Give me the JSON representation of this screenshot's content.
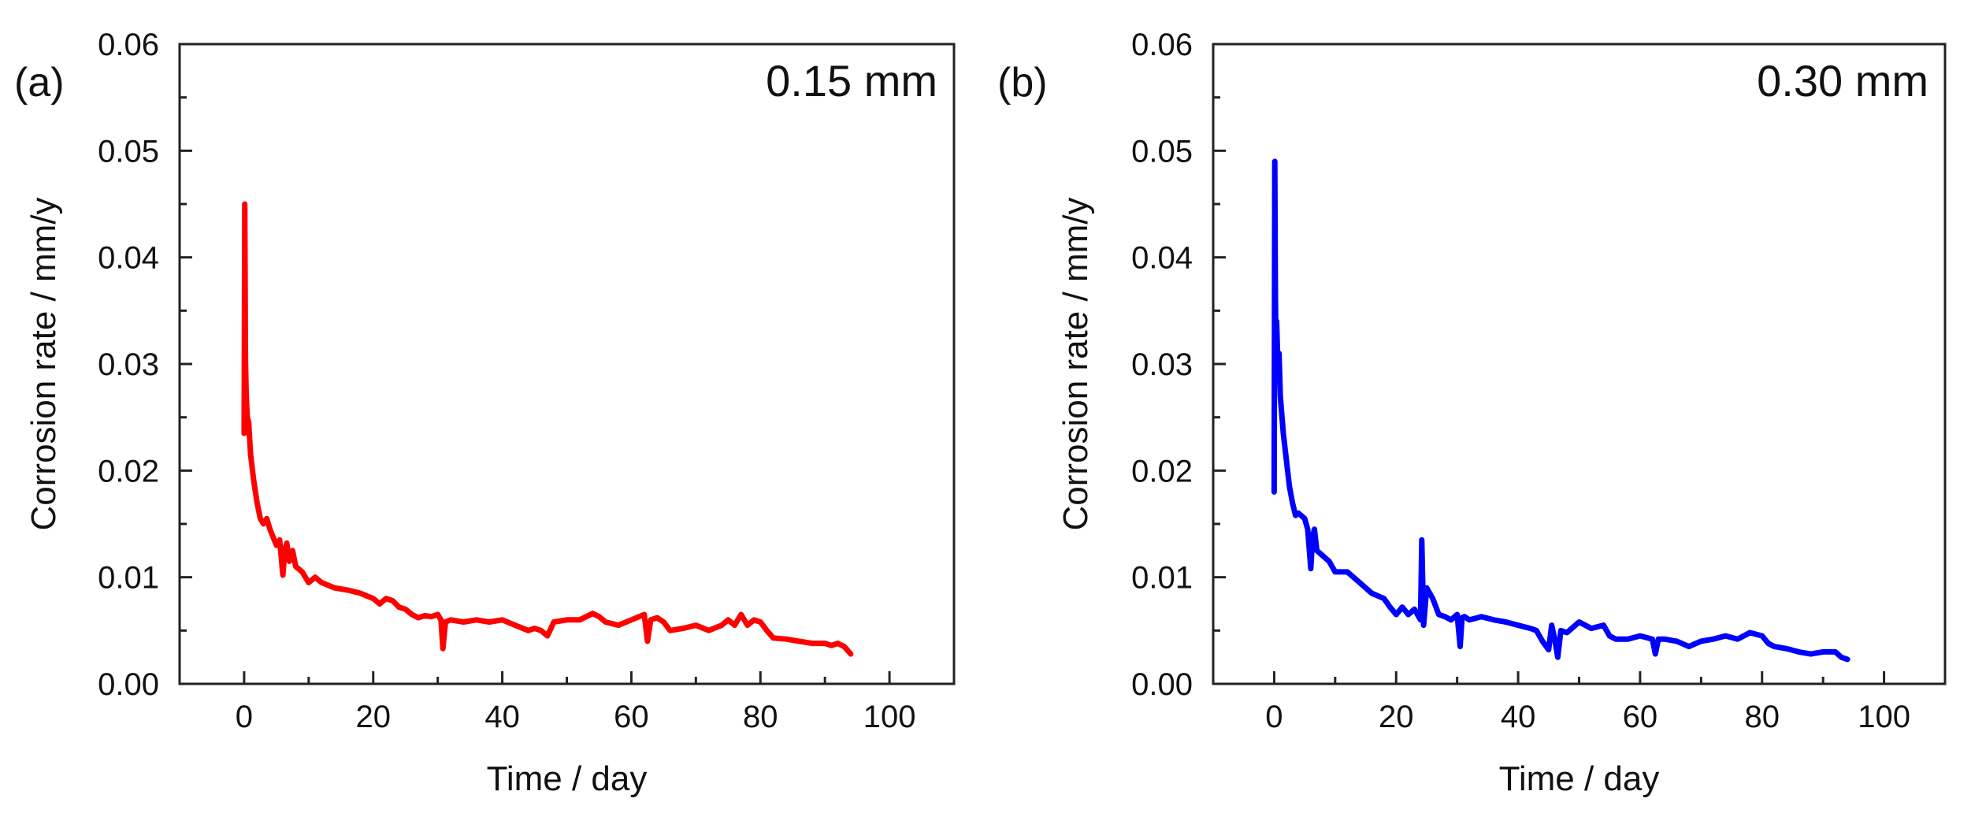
{
  "figure": {
    "panels": [
      {
        "panel_label": "(a)",
        "annotation": "0.15 mm",
        "color": "#ff0000"
      },
      {
        "panel_label": "(b)",
        "annotation": "0.30 mm",
        "color": "#0000ff"
      }
    ]
  },
  "chart_data": [
    {
      "type": "line",
      "panel_label": "(a)",
      "annotation": "0.15 mm",
      "title": "",
      "xlabel": "Time / day",
      "ylabel": "Corrosion rate / mm/y",
      "xlim": [
        -10,
        110
      ],
      "ylim": [
        0.0,
        0.06
      ],
      "xticks": [
        0,
        20,
        40,
        60,
        80,
        100
      ],
      "xtick_labels": [
        "0",
        "20",
        "40",
        "60",
        "80",
        "100"
      ],
      "yticks": [
        0.0,
        0.01,
        0.02,
        0.03,
        0.04,
        0.05,
        0.06
      ],
      "ytick_labels": [
        "0.00",
        "0.01",
        "0.02",
        "0.03",
        "0.04",
        "0.05",
        "0.06"
      ],
      "grid": false,
      "legend": "none",
      "series": [
        {
          "name": "0.15 mm",
          "color": "#ff0000",
          "x": [
            0,
            0.1,
            0.2,
            0.3,
            0.4,
            0.5,
            0.7,
            1.0,
            1.5,
            2.0,
            2.5,
            3.0,
            3.5,
            4.0,
            5.0,
            5.5,
            6.0,
            6.3,
            6.6,
            7.0,
            7.5,
            8.0,
            9.0,
            10.0,
            11.0,
            12.0,
            14.0,
            16.0,
            18.0,
            20.0,
            21.0,
            22.0,
            23.0,
            24.0,
            25.0,
            26.0,
            27.0,
            28.0,
            29.0,
            30.0,
            30.5,
            30.8,
            31.2,
            32.0,
            34.0,
            36.0,
            38.0,
            40.0,
            42.0,
            44.0,
            45.0,
            46.0,
            47.0,
            48.0,
            50.0,
            52.0,
            54.0,
            55.0,
            56.0,
            58.0,
            60.0,
            62.0,
            62.5,
            63.0,
            64.0,
            65.0,
            66.0,
            68.0,
            70.0,
            72.0,
            74.0,
            75.0,
            76.0,
            77.0,
            78.0,
            79.0,
            80.0,
            81.0,
            82.0,
            84.0,
            86.0,
            88.0,
            90.0,
            91.0,
            92.0,
            93.0,
            94.0
          ],
          "y": [
            0.0235,
            0.045,
            0.0305,
            0.0275,
            0.026,
            0.025,
            0.0245,
            0.0215,
            0.019,
            0.017,
            0.0155,
            0.015,
            0.0155,
            0.0145,
            0.013,
            0.0135,
            0.0102,
            0.0125,
            0.0132,
            0.0115,
            0.0125,
            0.011,
            0.0105,
            0.0095,
            0.01,
            0.0095,
            0.009,
            0.0088,
            0.0085,
            0.008,
            0.0075,
            0.008,
            0.0078,
            0.0072,
            0.007,
            0.0065,
            0.0062,
            0.0064,
            0.0063,
            0.0065,
            0.006,
            0.0033,
            0.0058,
            0.006,
            0.0058,
            0.006,
            0.0058,
            0.006,
            0.0055,
            0.005,
            0.0052,
            0.005,
            0.0045,
            0.0058,
            0.006,
            0.006,
            0.0066,
            0.0063,
            0.0058,
            0.0055,
            0.006,
            0.0065,
            0.004,
            0.006,
            0.0062,
            0.0058,
            0.005,
            0.0052,
            0.0055,
            0.005,
            0.0055,
            0.006,
            0.0055,
            0.0065,
            0.0055,
            0.006,
            0.0058,
            0.005,
            0.0043,
            0.0042,
            0.004,
            0.0038,
            0.0038,
            0.0036,
            0.0038,
            0.0035,
            0.0028
          ]
        }
      ]
    },
    {
      "type": "line",
      "panel_label": "(b)",
      "annotation": "0.30 mm",
      "title": "",
      "xlabel": "Time / day",
      "ylabel": "Corrosion rate / mm/y",
      "xlim": [
        -10,
        110
      ],
      "ylim": [
        0.0,
        0.06
      ],
      "xticks": [
        0,
        20,
        40,
        60,
        80,
        100
      ],
      "xtick_labels": [
        "0",
        "20",
        "40",
        "60",
        "80",
        "100"
      ],
      "yticks": [
        0.0,
        0.01,
        0.02,
        0.03,
        0.04,
        0.05,
        0.06
      ],
      "ytick_labels": [
        "0.00",
        "0.01",
        "0.02",
        "0.03",
        "0.04",
        "0.05",
        "0.06"
      ],
      "grid": false,
      "legend": "none",
      "series": [
        {
          "name": "0.30 mm",
          "color": "#0000ff",
          "x": [
            0,
            0.1,
            0.2,
            0.3,
            0.4,
            0.6,
            0.8,
            1.0,
            1.5,
            2.0,
            2.5,
            3.0,
            3.5,
            4.0,
            5.0,
            5.5,
            6.0,
            6.3,
            6.6,
            7.0,
            8.0,
            9.0,
            10.0,
            12.0,
            14.0,
            16.0,
            18.0,
            19.0,
            20.0,
            21.0,
            22.0,
            23.0,
            24.0,
            24.2,
            24.5,
            25.0,
            26.0,
            27.0,
            28.0,
            29.0,
            30.0,
            30.5,
            30.8,
            31.2,
            32.0,
            34.0,
            36.0,
            38.0,
            40.0,
            42.0,
            43.0,
            44.0,
            45.0,
            45.5,
            46.0,
            46.5,
            47.0,
            48.0,
            50.0,
            52.0,
            54.0,
            55.0,
            56.0,
            58.0,
            60.0,
            62.0,
            62.5,
            63.0,
            64.0,
            66.0,
            68.0,
            70.0,
            72.0,
            74.0,
            76.0,
            78.0,
            80.0,
            81.0,
            82.0,
            84.0,
            86.0,
            88.0,
            90.0,
            92.0,
            93.0,
            94.0
          ],
          "y": [
            0.018,
            0.049,
            0.036,
            0.032,
            0.034,
            0.03,
            0.031,
            0.027,
            0.0235,
            0.021,
            0.0185,
            0.017,
            0.0158,
            0.016,
            0.0155,
            0.0145,
            0.0108,
            0.0138,
            0.0145,
            0.0125,
            0.012,
            0.0115,
            0.0105,
            0.0105,
            0.0095,
            0.0085,
            0.008,
            0.0072,
            0.0065,
            0.0072,
            0.0065,
            0.007,
            0.006,
            0.0135,
            0.0055,
            0.009,
            0.008,
            0.0065,
            0.0063,
            0.006,
            0.0065,
            0.0035,
            0.0062,
            0.0063,
            0.006,
            0.0063,
            0.006,
            0.0058,
            0.0055,
            0.0052,
            0.005,
            0.004,
            0.0032,
            0.0055,
            0.0042,
            0.0025,
            0.005,
            0.0048,
            0.0058,
            0.0052,
            0.0055,
            0.0045,
            0.0042,
            0.0042,
            0.0045,
            0.0042,
            0.0028,
            0.0042,
            0.0042,
            0.004,
            0.0035,
            0.004,
            0.0042,
            0.0045,
            0.0042,
            0.0048,
            0.0045,
            0.0038,
            0.0035,
            0.0033,
            0.003,
            0.0028,
            0.003,
            0.003,
            0.0025,
            0.0023
          ]
        }
      ]
    }
  ]
}
